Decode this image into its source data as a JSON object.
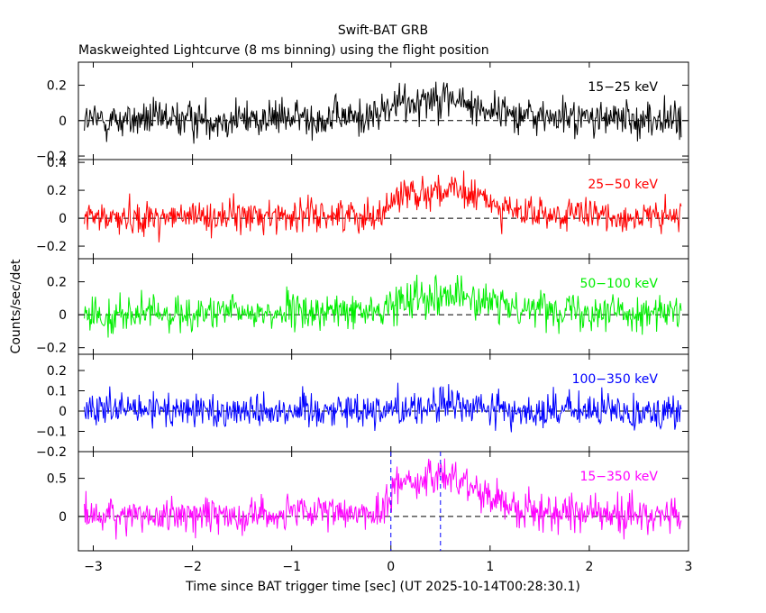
{
  "chart_data": {
    "type": "line",
    "title": "Swift-BAT GRB",
    "subtitle": "Maskweighted Lightcurve (8 ms binning) using the flight position",
    "xlabel": "Time since BAT trigger time [sec] (UT 2025-10-14T00:28:30.1)",
    "ylabel": "Counts/sec/det",
    "xlim": [
      -3.15,
      3.0
    ],
    "x_ticks": [
      -3,
      -2,
      -1,
      0,
      1,
      2,
      3
    ],
    "x_tick_labels": [
      "−3",
      "−2",
      "−1",
      "0",
      "1",
      "2",
      "3"
    ],
    "bin_width_sec": 0.008,
    "grid": false,
    "vlines": [
      {
        "x": 0.0,
        "color": "#0000ff",
        "style": "dashed"
      },
      {
        "x": 0.5,
        "color": "#0000ff",
        "style": "dashed"
      }
    ],
    "panels": [
      {
        "name": "15−25 keV",
        "label": "15−25 keV",
        "color": "#000000",
        "ylim": [
          -0.22,
          0.33
        ],
        "y_ticks": [
          -0.2,
          0,
          0.2
        ],
        "y_tick_labels": [
          "−0.2",
          "0",
          "0.2"
        ],
        "envelope": [
          {
            "x": -3.1,
            "mean": 0.0,
            "spread": 0.09
          },
          {
            "x": -0.2,
            "mean": 0.02,
            "spread": 0.09
          },
          {
            "x": 0.0,
            "mean": 0.08,
            "spread": 0.1
          },
          {
            "x": 0.5,
            "mean": 0.15,
            "spread": 0.1
          },
          {
            "x": 0.8,
            "mean": 0.08,
            "spread": 0.09
          },
          {
            "x": 1.5,
            "mean": 0.02,
            "spread": 0.09
          },
          {
            "x": 2.95,
            "mean": 0.0,
            "spread": 0.09
          }
        ]
      },
      {
        "name": "25−50 keV",
        "label": "25−50 keV",
        "color": "#ff0000",
        "ylim": [
          -0.29,
          0.42
        ],
        "y_ticks": [
          -0.2,
          0,
          0.2,
          0.4
        ],
        "y_tick_labels": [
          "−0.2",
          "0",
          "0.2",
          "0.4"
        ],
        "envelope": [
          {
            "x": -3.1,
            "mean": 0.0,
            "spread": 0.1
          },
          {
            "x": -0.1,
            "mean": 0.03,
            "spread": 0.1
          },
          {
            "x": 0.1,
            "mean": 0.18,
            "spread": 0.11
          },
          {
            "x": 0.5,
            "mean": 0.2,
            "spread": 0.11
          },
          {
            "x": 0.9,
            "mean": 0.15,
            "spread": 0.1
          },
          {
            "x": 1.3,
            "mean": 0.03,
            "spread": 0.1
          },
          {
            "x": 2.95,
            "mean": 0.0,
            "spread": 0.1
          }
        ]
      },
      {
        "name": "50−100 keV",
        "label": "50−100 keV",
        "color": "#00ee00",
        "ylim": [
          -0.24,
          0.34
        ],
        "y_ticks": [
          -0.2,
          0,
          0.2
        ],
        "y_tick_labels": [
          "−0.2",
          "0",
          "0.2"
        ],
        "envelope": [
          {
            "x": -3.1,
            "mean": 0.0,
            "spread": 0.09
          },
          {
            "x": -0.1,
            "mean": 0.02,
            "spread": 0.09
          },
          {
            "x": 0.2,
            "mean": 0.12,
            "spread": 0.1
          },
          {
            "x": 0.6,
            "mean": 0.13,
            "spread": 0.1
          },
          {
            "x": 1.0,
            "mean": 0.06,
            "spread": 0.09
          },
          {
            "x": 2.95,
            "mean": 0.0,
            "spread": 0.09
          }
        ]
      },
      {
        "name": "100−350 keV",
        "label": "100−350 keV",
        "color": "#0000ff",
        "ylim": [
          -0.2,
          0.28
        ],
        "y_ticks": [
          -0.2,
          -0.1,
          0,
          0.1,
          0.2
        ],
        "y_tick_labels": [
          "−0.2",
          "−0.1",
          "0",
          "0.1",
          "0.2"
        ],
        "envelope": [
          {
            "x": -3.1,
            "mean": 0.0,
            "spread": 0.075
          },
          {
            "x": 0.0,
            "mean": 0.01,
            "spread": 0.075
          },
          {
            "x": 0.6,
            "mean": 0.03,
            "spread": 0.08
          },
          {
            "x": 1.2,
            "mean": 0.0,
            "spread": 0.075
          },
          {
            "x": 2.95,
            "mean": 0.0,
            "spread": 0.075
          }
        ]
      },
      {
        "name": "15−350 keV",
        "label": "15−350 keV",
        "color": "#ff00ff",
        "ylim": [
          -0.45,
          0.85
        ],
        "y_ticks": [
          0,
          0.5
        ],
        "y_tick_labels": [
          "0",
          "0.5"
        ],
        "envelope": [
          {
            "x": -3.1,
            "mean": 0.0,
            "spread": 0.2
          },
          {
            "x": -0.1,
            "mean": 0.05,
            "spread": 0.2
          },
          {
            "x": 0.1,
            "mean": 0.5,
            "spread": 0.2
          },
          {
            "x": 0.3,
            "mean": 0.45,
            "spread": 0.2
          },
          {
            "x": 0.6,
            "mean": 0.55,
            "spread": 0.2
          },
          {
            "x": 0.9,
            "mean": 0.35,
            "spread": 0.2
          },
          {
            "x": 1.3,
            "mean": 0.08,
            "spread": 0.2
          },
          {
            "x": 2.95,
            "mean": 0.0,
            "spread": 0.2
          }
        ]
      }
    ]
  }
}
